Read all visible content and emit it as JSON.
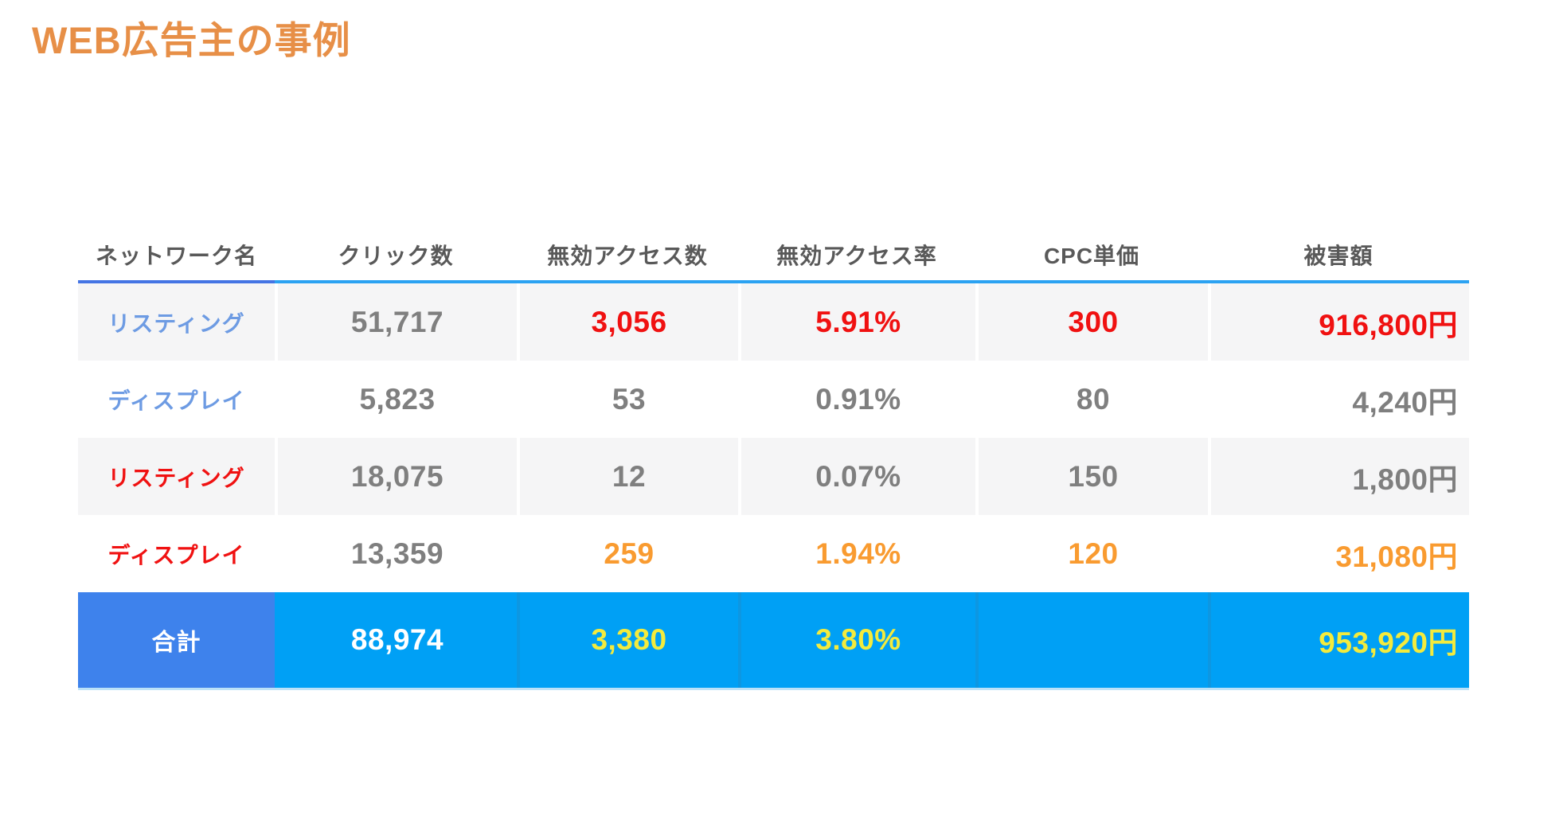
{
  "page": {
    "title": "WEB広告主の事例"
  },
  "table": {
    "columns": [
      {
        "label": "ネットワーク名"
      },
      {
        "label": "クリック数"
      },
      {
        "label": "無効アクセス数"
      },
      {
        "label": "無効アクセス率"
      },
      {
        "label": "CPC単価"
      },
      {
        "label": "被害額"
      }
    ],
    "rows": [
      {
        "cells": [
          {
            "text": "リスティング",
            "color": "netblue"
          },
          {
            "text": "51,717",
            "color": "gray"
          },
          {
            "text": "3,056",
            "color": "red"
          },
          {
            "text": "5.91%",
            "color": "red"
          },
          {
            "text": "300",
            "color": "red"
          },
          {
            "text": "916,800円",
            "color": "red"
          }
        ]
      },
      {
        "cells": [
          {
            "text": "ディスプレイ",
            "color": "netblue"
          },
          {
            "text": "5,823",
            "color": "gray"
          },
          {
            "text": "53",
            "color": "gray"
          },
          {
            "text": "0.91%",
            "color": "gray"
          },
          {
            "text": "80",
            "color": "gray"
          },
          {
            "text": "4,240円",
            "color": "gray"
          }
        ]
      },
      {
        "cells": [
          {
            "text": "リスティング",
            "color": "netred"
          },
          {
            "text": "18,075",
            "color": "gray"
          },
          {
            "text": "12",
            "color": "gray"
          },
          {
            "text": "0.07%",
            "color": "gray"
          },
          {
            "text": "150",
            "color": "gray"
          },
          {
            "text": "1,800円",
            "color": "gray"
          }
        ]
      },
      {
        "cells": [
          {
            "text": "ディスプレイ",
            "color": "netred"
          },
          {
            "text": "13,359",
            "color": "gray"
          },
          {
            "text": "259",
            "color": "orange"
          },
          {
            "text": "1.94%",
            "color": "orange"
          },
          {
            "text": "120",
            "color": "orange"
          },
          {
            "text": "31,080円",
            "color": "orange"
          }
        ]
      }
    ],
    "total": {
      "cells": [
        {
          "text": "合計",
          "color": "white"
        },
        {
          "text": "88,974",
          "color": "white"
        },
        {
          "text": "3,380",
          "color": "yellow"
        },
        {
          "text": "3.80%",
          "color": "yellow"
        },
        {
          "text": "",
          "color": "yellow"
        },
        {
          "text": "953,920円",
          "color": "yellow"
        }
      ]
    }
  },
  "colors": {
    "title_orange": "#E78F47",
    "header_text": "#595959",
    "underline_primary_blue": "#4474E4",
    "underline_accent_azure": "#2BA2F2",
    "stripe_background": "#F5F5F6",
    "network_label_blue": "#6D9BE3",
    "alert_red": "#F01111",
    "warning_orange": "#F99B30",
    "value_gray": "#7F7F7F",
    "total_label_background": "#3E82EC",
    "total_row_background": "#00A0F5",
    "total_value_yellow": "#F3EB3D"
  }
}
